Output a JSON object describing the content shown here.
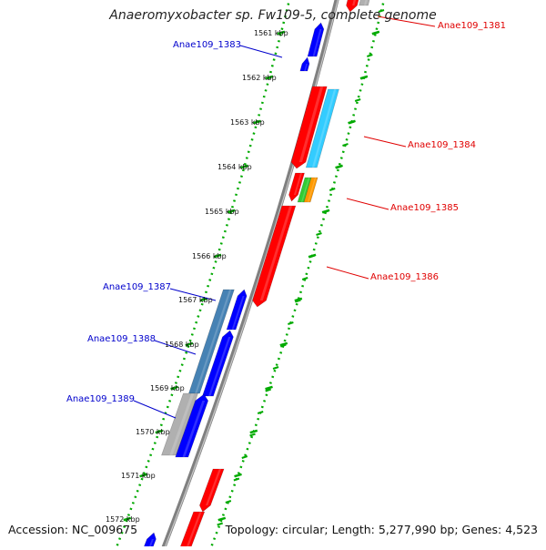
{
  "title": "Anaeromyxobacter sp. Fw109-5, complete genome",
  "accession": "Accession: NC_009675",
  "topology": "Topology: circular; Length: 5,277,990 bp; Genes: 4,523",
  "kbp_labels": [
    "1561 kbp",
    "1562 kbp",
    "1563 kbp",
    "1564 kbp",
    "1565 kbp",
    "1566 kbp",
    "1567 kbp",
    "1568 kbp",
    "1569 kbp",
    "1570 kbp",
    "1571 kbp",
    "1572 kbp"
  ],
  "gene_labels": [
    {
      "text": "Anae109_1381",
      "color": "#e00000"
    },
    {
      "text": "Anae109_1383",
      "color": "#0000cc"
    },
    {
      "text": "Anae109_1384",
      "color": "#e00000"
    },
    {
      "text": "Anae109_1385",
      "color": "#e00000"
    },
    {
      "text": "Anae109_1386",
      "color": "#e00000"
    },
    {
      "text": "Anae109_1387",
      "color": "#0000cc"
    },
    {
      "text": "Anae109_1388",
      "color": "#0000cc"
    },
    {
      "text": "Anae109_1389",
      "color": "#0000cc"
    }
  ],
  "colors": {
    "forward_gene": "#ff0000",
    "reverse_gene": "#0000ff",
    "light_blue_gene": "#33ccff",
    "steel_blue_gene": "#4682b4",
    "green_gene": "#33cc33",
    "orange_gene": "#ff9900",
    "grey_gene": "#b0b0b0",
    "backbone": "#808080",
    "dotted_track": "#00aa00"
  }
}
